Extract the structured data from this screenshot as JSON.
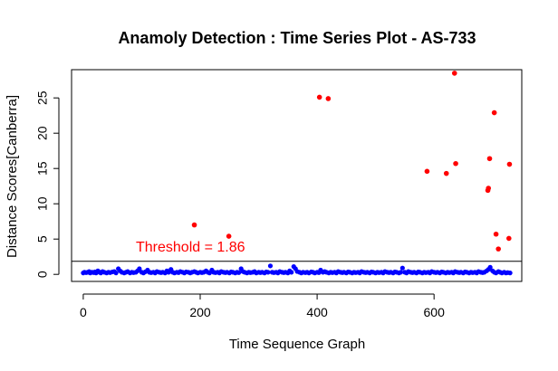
{
  "chart_data": {
    "type": "scatter",
    "title": "Anamoly Detection : Time Series Plot - AS-733",
    "xlabel": "Time Sequence Graph",
    "ylabel": "Distance Scores[Canberra]",
    "xlim": [
      -20,
      750
    ],
    "ylim": [
      -1,
      29
    ],
    "x_ticks": [
      0,
      200,
      400,
      600
    ],
    "y_ticks": [
      0,
      5,
      10,
      15,
      20,
      25
    ],
    "grid": false,
    "threshold": {
      "value": 1.86,
      "label": "Threshold = 1.86",
      "color": "#ff0000"
    },
    "series": [
      {
        "color": "#0000ff",
        "points": [
          [
            0,
            0.2
          ],
          [
            2,
            0.3
          ],
          [
            5,
            0.25
          ],
          [
            8,
            0.3
          ],
          [
            10,
            0.4
          ],
          [
            12,
            0.2
          ],
          [
            15,
            0.3
          ],
          [
            18,
            0.25
          ],
          [
            20,
            0.35
          ],
          [
            22,
            0.2
          ],
          [
            25,
            0.5
          ],
          [
            28,
            0.3
          ],
          [
            30,
            0.2
          ],
          [
            33,
            0.4
          ],
          [
            36,
            0.3
          ],
          [
            40,
            0.2
          ],
          [
            43,
            0.3
          ],
          [
            46,
            0.25
          ],
          [
            50,
            0.35
          ],
          [
            53,
            0.4
          ],
          [
            56,
            0.2
          ],
          [
            60,
            0.8
          ],
          [
            63,
            0.5
          ],
          [
            66,
            0.3
          ],
          [
            70,
            0.2
          ],
          [
            73,
            0.3
          ],
          [
            76,
            0.4
          ],
          [
            80,
            0.2
          ],
          [
            83,
            0.3
          ],
          [
            86,
            0.25
          ],
          [
            90,
            0.3
          ],
          [
            93,
            0.5
          ],
          [
            96,
            0.8
          ],
          [
            100,
            0.3
          ],
          [
            103,
            0.2
          ],
          [
            106,
            0.35
          ],
          [
            110,
            0.6
          ],
          [
            113,
            0.3
          ],
          [
            116,
            0.25
          ],
          [
            120,
            0.3
          ],
          [
            123,
            0.2
          ],
          [
            126,
            0.4
          ],
          [
            130,
            0.3
          ],
          [
            133,
            0.25
          ],
          [
            136,
            0.3
          ],
          [
            140,
            0.2
          ],
          [
            143,
            0.5
          ],
          [
            146,
            0.3
          ],
          [
            150,
            0.7
          ],
          [
            153,
            0.3
          ],
          [
            156,
            0.2
          ],
          [
            160,
            0.3
          ],
          [
            163,
            0.25
          ],
          [
            166,
            0.4
          ],
          [
            170,
            0.3
          ],
          [
            173,
            0.2
          ],
          [
            176,
            0.35
          ],
          [
            180,
            0.3
          ],
          [
            183,
            0.2
          ],
          [
            186,
            0.3
          ],
          [
            190,
            0.4
          ],
          [
            193,
            0.3
          ],
          [
            196,
            0.2
          ],
          [
            200,
            0.3
          ],
          [
            203,
            0.25
          ],
          [
            206,
            0.3
          ],
          [
            210,
            0.5
          ],
          [
            213,
            0.3
          ],
          [
            216,
            0.2
          ],
          [
            220,
            0.6
          ],
          [
            223,
            0.3
          ],
          [
            226,
            0.25
          ],
          [
            230,
            0.3
          ],
          [
            233,
            0.2
          ],
          [
            236,
            0.4
          ],
          [
            240,
            0.3
          ],
          [
            243,
            0.25
          ],
          [
            246,
            0.3
          ],
          [
            250,
            0.2
          ],
          [
            253,
            0.35
          ],
          [
            256,
            0.3
          ],
          [
            260,
            0.2
          ],
          [
            263,
            0.3
          ],
          [
            266,
            0.25
          ],
          [
            270,
            0.8
          ],
          [
            273,
            0.4
          ],
          [
            276,
            0.3
          ],
          [
            280,
            0.2
          ],
          [
            283,
            0.3
          ],
          [
            286,
            0.25
          ],
          [
            290,
            0.3
          ],
          [
            293,
            0.4
          ],
          [
            296,
            0.2
          ],
          [
            300,
            0.3
          ],
          [
            303,
            0.25
          ],
          [
            306,
            0.3
          ],
          [
            310,
            0.2
          ],
          [
            313,
            0.35
          ],
          [
            316,
            0.3
          ],
          [
            320,
            1.2
          ],
          [
            323,
            0.3
          ],
          [
            326,
            0.25
          ],
          [
            330,
            0.3
          ],
          [
            333,
            0.2
          ],
          [
            336,
            0.4
          ],
          [
            340,
            0.3
          ],
          [
            343,
            0.25
          ],
          [
            346,
            0.3
          ],
          [
            350,
            0.2
          ],
          [
            353,
            0.5
          ],
          [
            356,
            0.3
          ],
          [
            360,
            1.1
          ],
          [
            363,
            0.8
          ],
          [
            366,
            0.4
          ],
          [
            370,
            0.3
          ],
          [
            373,
            0.2
          ],
          [
            376,
            0.3
          ],
          [
            380,
            0.25
          ],
          [
            383,
            0.3
          ],
          [
            386,
            0.2
          ],
          [
            390,
            0.35
          ],
          [
            393,
            0.3
          ],
          [
            396,
            0.2
          ],
          [
            400,
            0.3
          ],
          [
            403,
            0.25
          ],
          [
            406,
            0.6
          ],
          [
            410,
            0.3
          ],
          [
            413,
            0.4
          ],
          [
            416,
            0.3
          ],
          [
            420,
            0.2
          ],
          [
            423,
            0.3
          ],
          [
            426,
            0.25
          ],
          [
            430,
            0.3
          ],
          [
            433,
            0.2
          ],
          [
            436,
            0.4
          ],
          [
            440,
            0.3
          ],
          [
            443,
            0.25
          ],
          [
            446,
            0.3
          ],
          [
            450,
            0.2
          ],
          [
            453,
            0.35
          ],
          [
            456,
            0.3
          ],
          [
            460,
            0.2
          ],
          [
            463,
            0.3
          ],
          [
            466,
            0.25
          ],
          [
            470,
            0.3
          ],
          [
            473,
            0.2
          ],
          [
            476,
            0.4
          ],
          [
            480,
            0.3
          ],
          [
            483,
            0.25
          ],
          [
            486,
            0.3
          ],
          [
            490,
            0.2
          ],
          [
            493,
            0.35
          ],
          [
            496,
            0.3
          ],
          [
            500,
            0.2
          ],
          [
            503,
            0.3
          ],
          [
            506,
            0.25
          ],
          [
            510,
            0.3
          ],
          [
            513,
            0.2
          ],
          [
            516,
            0.4
          ],
          [
            520,
            0.3
          ],
          [
            523,
            0.25
          ],
          [
            526,
            0.3
          ],
          [
            530,
            0.2
          ],
          [
            533,
            0.35
          ],
          [
            536,
            0.3
          ],
          [
            540,
            0.2
          ],
          [
            543,
            0.3
          ],
          [
            546,
            0.9
          ],
          [
            550,
            0.3
          ],
          [
            553,
            0.2
          ],
          [
            556,
            0.4
          ],
          [
            560,
            0.3
          ],
          [
            563,
            0.25
          ],
          [
            566,
            0.3
          ],
          [
            570,
            0.2
          ],
          [
            573,
            0.35
          ],
          [
            576,
            0.3
          ],
          [
            580,
            0.2
          ],
          [
            583,
            0.3
          ],
          [
            586,
            0.25
          ],
          [
            590,
            0.3
          ],
          [
            593,
            0.2
          ],
          [
            596,
            0.4
          ],
          [
            600,
            0.3
          ],
          [
            603,
            0.25
          ],
          [
            606,
            0.3
          ],
          [
            610,
            0.2
          ],
          [
            613,
            0.35
          ],
          [
            616,
            0.3
          ],
          [
            620,
            0.2
          ],
          [
            623,
            0.3
          ],
          [
            626,
            0.25
          ],
          [
            630,
            0.3
          ],
          [
            633,
            0.2
          ],
          [
            636,
            0.4
          ],
          [
            640,
            0.3
          ],
          [
            643,
            0.25
          ],
          [
            646,
            0.3
          ],
          [
            650,
            0.2
          ],
          [
            653,
            0.35
          ],
          [
            656,
            0.3
          ],
          [
            660,
            0.2
          ],
          [
            663,
            0.3
          ],
          [
            666,
            0.25
          ],
          [
            670,
            0.3
          ],
          [
            673,
            0.2
          ],
          [
            676,
            0.4
          ],
          [
            680,
            0.3
          ],
          [
            683,
            0.25
          ],
          [
            686,
            0.3
          ],
          [
            690,
            0.5
          ],
          [
            693,
            0.7
          ],
          [
            696,
            1.0
          ],
          [
            700,
            0.5
          ],
          [
            703,
            0.3
          ],
          [
            706,
            0.2
          ],
          [
            710,
            0.4
          ],
          [
            713,
            0.3
          ],
          [
            716,
            0.2
          ],
          [
            720,
            0.3
          ],
          [
            723,
            0.2
          ],
          [
            726,
            0.25
          ],
          [
            730,
            0.2
          ]
        ]
      },
      {
        "color": "#ff0000",
        "points": [
          [
            190,
            7.0
          ],
          [
            249,
            5.4
          ],
          [
            404,
            25.1
          ],
          [
            419,
            24.9
          ],
          [
            588,
            14.6
          ],
          [
            621,
            14.3
          ],
          [
            635,
            28.5
          ],
          [
            637,
            15.7
          ],
          [
            692,
            11.9
          ],
          [
            693,
            12.2
          ],
          [
            695,
            16.4
          ],
          [
            703,
            22.9
          ],
          [
            706,
            5.7
          ],
          [
            710,
            3.6
          ],
          [
            728,
            5.1
          ],
          [
            729,
            15.6
          ]
        ]
      }
    ]
  }
}
